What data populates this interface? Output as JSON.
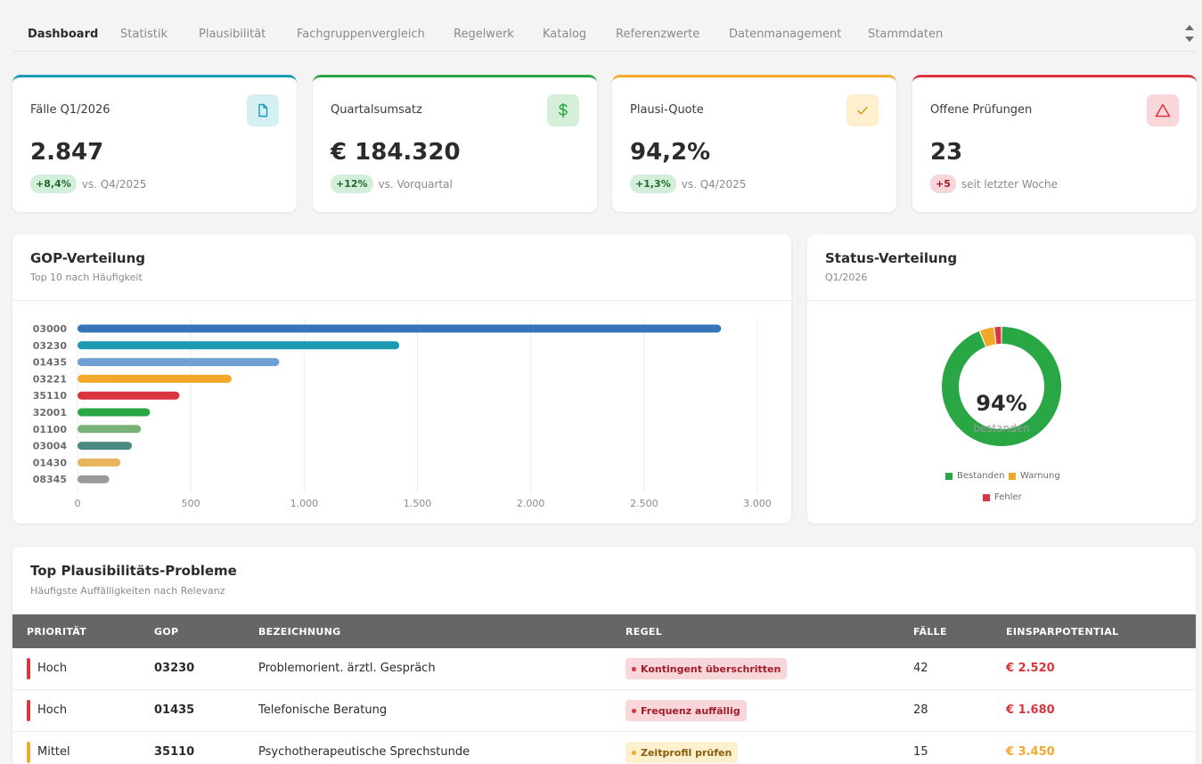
{
  "nav": {
    "tabs": [
      {
        "label": "Dashboard",
        "active": true
      },
      {
        "label": "Statistik"
      },
      {
        "label": "Plausibilität"
      },
      {
        "label": "Fachgruppenvergleich"
      },
      {
        "label": "Regelwerk"
      },
      {
        "label": "Katalog"
      },
      {
        "label": "Referenzwerte"
      },
      {
        "label": "Datenmanagement"
      },
      {
        "label": "Stammdaten"
      }
    ]
  },
  "kpis": [
    {
      "title": "Fälle Q1/2026",
      "value": "2.847",
      "delta": "+8,4%",
      "delta_tone": "green",
      "note": "vs. Q4/2025",
      "icon": "document-icon",
      "accent": "#1a9bb3",
      "icon_bg": "#d6eff4",
      "icon_color": "#1a9bb3"
    },
    {
      "title": "Quartalsumsatz",
      "value": "€ 184.320",
      "delta": "+12%",
      "delta_tone": "green",
      "note": "vs. Vorquartal",
      "icon": "dollar-icon",
      "accent": "#2aa745",
      "icon_bg": "#d5efd9",
      "icon_color": "#2aa745"
    },
    {
      "title": "Plausi-Quote",
      "value": "94,2%",
      "delta": "+1,3%",
      "delta_tone": "green",
      "note": "vs. Q4/2025",
      "icon": "check-icon",
      "accent": "#f4a82a",
      "icon_bg": "#fdf0cf",
      "icon_color": "#d99a1a"
    },
    {
      "title": "Offene Prüfungen",
      "value": "23",
      "delta": "+5",
      "delta_tone": "red",
      "note": "seit letzter Woche",
      "icon": "warning-icon",
      "accent": "#d8353f",
      "icon_bg": "#f8d6d9",
      "icon_color": "#d8353f"
    }
  ],
  "gop_panel": {
    "title": "GOP-Verteilung",
    "subtitle": "Top 10 nach Häufigkeit"
  },
  "status_panel": {
    "title": "Status-Verteilung",
    "subtitle": "Q1/2026",
    "center_value": "94%",
    "center_label": "bestanden"
  },
  "chart_data": [
    {
      "type": "bar",
      "orientation": "horizontal",
      "categories": [
        "03000",
        "03230",
        "01435",
        "03221",
        "35110",
        "32001",
        "01100",
        "03004",
        "01430",
        "08345"
      ],
      "values": [
        2840,
        1420,
        890,
        680,
        450,
        320,
        280,
        240,
        190,
        140
      ],
      "colors": [
        "#3676b8",
        "#1a9bb3",
        "#6f9fd3",
        "#f4a82a",
        "#d8353f",
        "#2aa745",
        "#78b27a",
        "#4a8a80",
        "#e8b45c",
        "#999999"
      ],
      "xlim": [
        0,
        3000
      ],
      "xticks": [
        "0",
        "500",
        "1.000",
        "1.500",
        "2.000",
        "2.500",
        "3.000"
      ],
      "grid": true
    },
    {
      "type": "pie",
      "donut": true,
      "labels": [
        "Bestanden",
        "Warnung",
        "Fehler"
      ],
      "values": [
        94,
        4,
        2
      ],
      "colors": [
        "#2aa745",
        "#f4a82a",
        "#d8353f"
      ],
      "legend": "bottom"
    }
  ],
  "problems": {
    "title": "Top Plausibilitäts-Probleme",
    "subtitle": "Häufigste Auffälligkeiten nach Relevanz",
    "columns": [
      "PRIORITÄT",
      "GOP",
      "BEZEICHNUNG",
      "REGEL",
      "FÄLLE",
      "EINSPARPOTENTIAL"
    ],
    "rows": [
      {
        "priority": "Hoch",
        "prio_color": "#d8353f",
        "gop": "03230",
        "label": "Problemorient. ärztl. Gespräch",
        "rule": "Kontingent überschritten",
        "rule_bg": "#f8d6d9",
        "rule_color": "#a01e2a",
        "rule_dot": "#d8353f",
        "cases": "42",
        "saving": "€ 2.520",
        "saving_color": "#d8353f"
      },
      {
        "priority": "Hoch",
        "prio_color": "#d8353f",
        "gop": "01435",
        "label": "Telefonische Beratung",
        "rule": "Frequenz auffällig",
        "rule_bg": "#f8d6d9",
        "rule_color": "#a01e2a",
        "rule_dot": "#d8353f",
        "cases": "28",
        "saving": "€ 1.680",
        "saving_color": "#d8353f"
      },
      {
        "priority": "Mittel",
        "prio_color": "#f4a82a",
        "gop": "35110",
        "label": "Psychotherapeutische Sprechstunde",
        "rule": "Zeitprofil prüfen",
        "rule_bg": "#fdf0cf",
        "rule_color": "#8a5d0a",
        "rule_dot": "#f4a82a",
        "cases": "15",
        "saving": "€ 3.450",
        "saving_color": "#f4a82a"
      }
    ]
  }
}
